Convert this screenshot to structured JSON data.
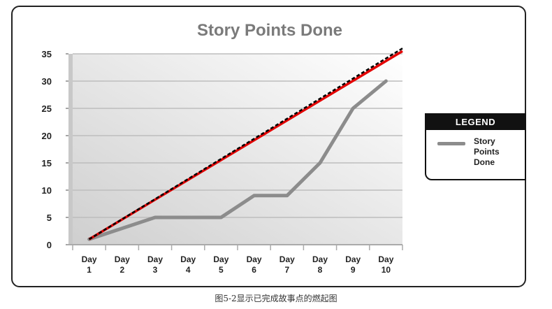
{
  "chart_data": {
    "type": "line",
    "title": "Story Points Done",
    "categories": [
      [
        "Day",
        "1"
      ],
      [
        "Day",
        "2"
      ],
      [
        "Day",
        "3"
      ],
      [
        "Day",
        "4"
      ],
      [
        "Day",
        "5"
      ],
      [
        "Day",
        "6"
      ],
      [
        "Day",
        "7"
      ],
      [
        "Day",
        "8"
      ],
      [
        "Day",
        "9"
      ],
      [
        "Day",
        "10"
      ]
    ],
    "x": [
      1,
      2,
      3,
      4,
      5,
      6,
      7,
      8,
      9,
      10
    ],
    "series": [
      {
        "name": "Story Points Done",
        "values": [
          1,
          3,
          5,
          5,
          5,
          9,
          9,
          15,
          25,
          30
        ],
        "color": "#8c8c8c"
      }
    ],
    "trend_lines": [
      {
        "color": "#e30000",
        "style": "solid",
        "from": [
          1,
          1
        ],
        "to": [
          10.5,
          35.5
        ]
      },
      {
        "color": "#000000",
        "style": "dashed",
        "from": [
          1,
          1
        ],
        "to": [
          10.5,
          36
        ]
      }
    ],
    "yticks": [
      0,
      5,
      10,
      15,
      20,
      25,
      30,
      35
    ],
    "ylim": [
      0,
      35
    ],
    "grid": true,
    "legend_position": "right",
    "background_colors": [
      "#d9d9d9",
      "#ffffff"
    ]
  },
  "legend": {
    "header": "LEGEND",
    "entries": [
      {
        "label": "Story Points Done",
        "color": "#8c8c8c"
      }
    ]
  },
  "caption": "图5-2显示已完成故事点的燃起图"
}
